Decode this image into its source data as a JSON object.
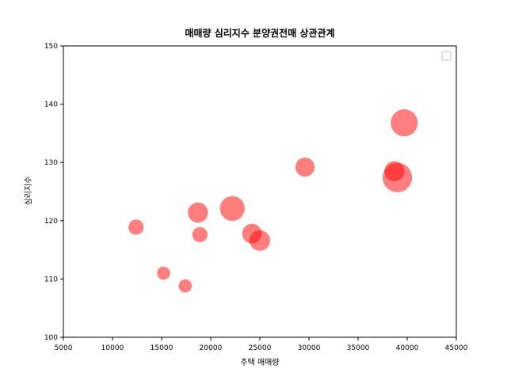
{
  "chart_data": {
    "type": "scatter",
    "title": "매매량 심리지수 분양권전매 상관관계",
    "xlabel": "주택 매매량",
    "ylabel": "심리지수",
    "xlim": [
      5000,
      45000
    ],
    "ylim": [
      100,
      150
    ],
    "x_ticks": [
      5000,
      10000,
      15000,
      20000,
      25000,
      30000,
      35000,
      40000,
      45000
    ],
    "y_ticks": [
      100,
      110,
      120,
      130,
      140,
      150
    ],
    "grid": false,
    "legend": "top-right",
    "color": "#ff0000",
    "alpha": 0.5,
    "points": [
      {
        "x": 12400,
        "y": 118.9,
        "size": 240
      },
      {
        "x": 15200,
        "y": 111.0,
        "size": 180
      },
      {
        "x": 17400,
        "y": 108.8,
        "size": 180
      },
      {
        "x": 18700,
        "y": 121.4,
        "size": 420
      },
      {
        "x": 18900,
        "y": 117.6,
        "size": 240
      },
      {
        "x": 22200,
        "y": 122.1,
        "size": 640
      },
      {
        "x": 24200,
        "y": 117.8,
        "size": 400
      },
      {
        "x": 25000,
        "y": 116.6,
        "size": 440
      },
      {
        "x": 29600,
        "y": 129.2,
        "size": 380
      },
      {
        "x": 38700,
        "y": 128.5,
        "size": 420
      },
      {
        "x": 39000,
        "y": 127.4,
        "size": 900
      },
      {
        "x": 39700,
        "y": 136.8,
        "size": 760
      }
    ]
  }
}
